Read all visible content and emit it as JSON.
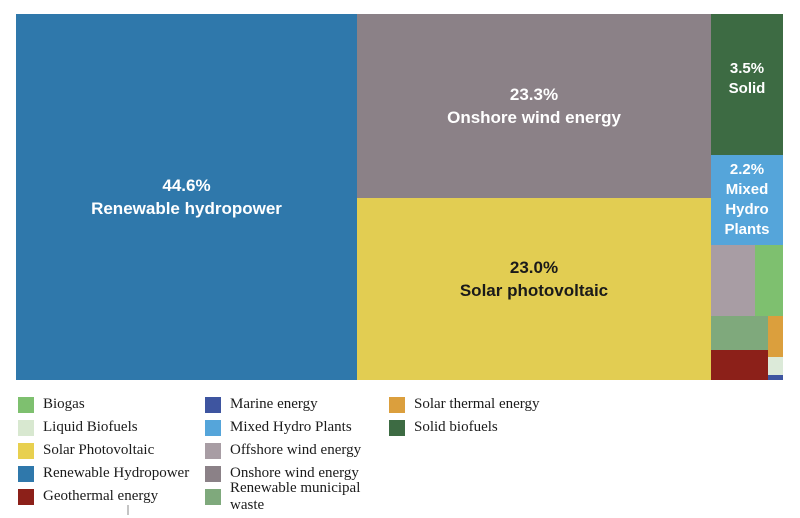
{
  "chart_data": {
    "type": "treemap",
    "title": "",
    "legend_position": "bottom",
    "series": [
      {
        "name": "Renewable hydropower",
        "value_pct": 44.6,
        "labeled": true,
        "color": "#2f78ab"
      },
      {
        "name": "Onshore wind energy",
        "value_pct": 23.3,
        "labeled": true,
        "color": "#8b8187"
      },
      {
        "name": "Solar photovoltaic",
        "value_pct": 23.0,
        "labeled": true,
        "color": "#e2cd52"
      },
      {
        "name": "Solid biofuels",
        "value_pct": 3.5,
        "labeled": true,
        "color": "#3d6b43"
      },
      {
        "name": "Mixed Hydro Plants",
        "value_pct": 2.2,
        "labeled": true,
        "color": "#55a5da"
      },
      {
        "name": "Offshore wind energy",
        "value_pct_est": 1.2,
        "labeled": false,
        "color": "#a89da4"
      },
      {
        "name": "Biogas",
        "value_pct_est": 0.8,
        "labeled": false,
        "color": "#7ec06f"
      },
      {
        "name": "Renewable municipal waste",
        "value_pct_est": 0.7,
        "labeled": false,
        "color": "#7fa97c"
      },
      {
        "name": "Geothermal energy",
        "value_pct_est": 0.6,
        "labeled": false,
        "color": "#8c2019"
      },
      {
        "name": "Solar thermal energy",
        "value_pct_est": 0.25,
        "labeled": false,
        "color": "#db9f3d"
      },
      {
        "name": "Liquid Biofuels",
        "value_pct_est": 0.1,
        "labeled": false,
        "color": "#dcead9"
      },
      {
        "name": "Marine energy",
        "value_pct_est": 0.05,
        "labeled": false,
        "color": "#3e55a0"
      }
    ]
  },
  "treemap": {
    "hydro": {
      "value": "44.6%",
      "label": "Renewable hydropower"
    },
    "onshore": {
      "value": "23.3%",
      "label": "Onshore wind energy"
    },
    "solarpv": {
      "value": "23.0%",
      "label": "Solar photovoltaic"
    },
    "solid": {
      "value": "3.5%",
      "label": "Solid"
    },
    "mixed": {
      "value": "2.2%",
      "label": "Mixed Hydro Plants"
    }
  },
  "legend": {
    "items": [
      {
        "label": "Biogas",
        "color": "#7ec06f"
      },
      {
        "label": "Liquid Biofuels",
        "color": "#d8e8d0"
      },
      {
        "label": "Solar Photovoltaic",
        "color": "#e8d04f"
      },
      {
        "label": "Renewable Hydropower",
        "color": "#2f78ab"
      },
      {
        "label": "Geothermal energy",
        "color": "#8c2019"
      },
      {
        "label": "Marine energy",
        "color": "#3e55a0"
      },
      {
        "label": "Mixed Hydro Plants",
        "color": "#55a5da"
      },
      {
        "label": "Offshore wind energy",
        "color": "#a89da4"
      },
      {
        "label": "Onshore wind energy",
        "color": "#8b8187"
      },
      {
        "label": "Renewable municipal waste",
        "color": "#7fa97c"
      },
      {
        "label": "Solar thermal energy",
        "color": "#db9f3d"
      },
      {
        "label": "Solid biofuels",
        "color": "#3d6b43"
      }
    ]
  },
  "colors": {
    "text_light": "#ffffff",
    "text_dark": "#1a1a1a",
    "background": "#ffffff"
  }
}
